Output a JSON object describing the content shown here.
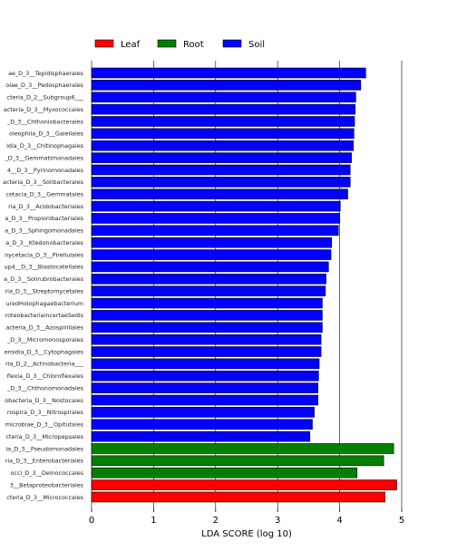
{
  "chart_data": {
    "type": "bar",
    "orientation": "horizontal",
    "xlabel": "LDA SCORE (log 10)",
    "xlim": [
      0,
      5
    ],
    "xticks": [
      0,
      1,
      2,
      3,
      4,
      5
    ],
    "grid": true,
    "legend_placement": "top-left",
    "legend": [
      {
        "name": "Leaf",
        "color": "#ff0000"
      },
      {
        "name": "Root",
        "color": "#008000"
      },
      {
        "name": "Soil",
        "color": "#0000ff"
      }
    ],
    "bars": [
      {
        "label": "ae_D_3__Tepidisphaerales",
        "value": 4.42,
        "group": "Soil"
      },
      {
        "label": "olae_D_3__Pedosphaerales",
        "value": 4.34,
        "group": "Soil"
      },
      {
        "label": "cteria_D_2__Subgroup6___",
        "value": 4.26,
        "group": "Soil"
      },
      {
        "label": "acteria_D_3__Myxococcales",
        "value": 4.25,
        "group": "Soil"
      },
      {
        "label": "_D_3__Chthoniobacterales",
        "value": 4.24,
        "group": "Soil"
      },
      {
        "label": "oleophila_D_3__Gaiellales",
        "value": 4.23,
        "group": "Soil"
      },
      {
        "label": "idia_D_3__Chitinophagales",
        "value": 4.22,
        "group": "Soil"
      },
      {
        "label": "_D_3__Gemmatimonadales",
        "value": 4.19,
        "group": "Soil"
      },
      {
        "label": "4__D_3__Pyrinomonadales",
        "value": 4.17,
        "group": "Soil"
      },
      {
        "label": "acteria_D_3__Solibacterales",
        "value": 4.17,
        "group": "Soil"
      },
      {
        "label": "cetacia_D_3__Gemmatales",
        "value": 4.13,
        "group": "Soil"
      },
      {
        "label": "ria_D_3__Acidobacteriales",
        "value": 4.01,
        "group": "Soil"
      },
      {
        "label": "a_D_3__Propionibacteriales",
        "value": 4.0,
        "group": "Soil"
      },
      {
        "label": "a_D_3__Sphingomonadales",
        "value": 3.98,
        "group": "Soil"
      },
      {
        "label": "a_D_3__Ktedonobacterales",
        "value": 3.87,
        "group": "Soil"
      },
      {
        "label": "nycetacia_D_3__Pirellulales",
        "value": 3.86,
        "group": "Soil"
      },
      {
        "label": "up4__D_3__Blastocatellales",
        "value": 3.82,
        "group": "Soil"
      },
      {
        "label": "a_D_3__Solirubrobacterales",
        "value": 3.78,
        "group": "Soil"
      },
      {
        "label": "ria_D_3__Streptomycetales",
        "value": 3.77,
        "group": "Soil"
      },
      {
        "label": "uredHolophagaebacterium",
        "value": 3.72,
        "group": "Soil"
      },
      {
        "label": "roteobacteriaincertaeSedis",
        "value": 3.72,
        "group": "Soil"
      },
      {
        "label": "acteria_D_3__Azospirillales",
        "value": 3.72,
        "group": "Soil"
      },
      {
        "label": "_D_3__Micromonosporales",
        "value": 3.7,
        "group": "Soil"
      },
      {
        "label": "eroidia_D_3__Cytophagales",
        "value": 3.7,
        "group": "Soil"
      },
      {
        "label": "ria_D_2__Actinobacteria___",
        "value": 3.67,
        "group": "Soil"
      },
      {
        "label": "flexia_D_3__Chloroflexales",
        "value": 3.66,
        "group": "Soil"
      },
      {
        "label": "_D_3__Chthonomonadales",
        "value": 3.65,
        "group": "Soil"
      },
      {
        "label": "obacteria_D_3__Nostocales",
        "value": 3.65,
        "group": "Soil"
      },
      {
        "label": "rospira_D_3__Nitrospirales",
        "value": 3.59,
        "group": "Soil"
      },
      {
        "label": "microbiae_D_3__Opitutales",
        "value": 3.56,
        "group": "Soil"
      },
      {
        "label": "cteria_D_3__Micropepsales",
        "value": 3.52,
        "group": "Soil"
      },
      {
        "label": "ia_D_3__Pseudomonadales",
        "value": 4.87,
        "group": "Root"
      },
      {
        "label": "ria_D_3__Enterobacteriales",
        "value": 4.71,
        "group": "Root"
      },
      {
        "label": "occi_D_3__Deinococcales",
        "value": 4.28,
        "group": "Root"
      },
      {
        "label": "3__Betaproteobacteriales",
        "value": 4.92,
        "group": "Leaf"
      },
      {
        "label": "cteria_D_3__Micrococcales",
        "value": 4.73,
        "group": "Leaf"
      }
    ]
  }
}
